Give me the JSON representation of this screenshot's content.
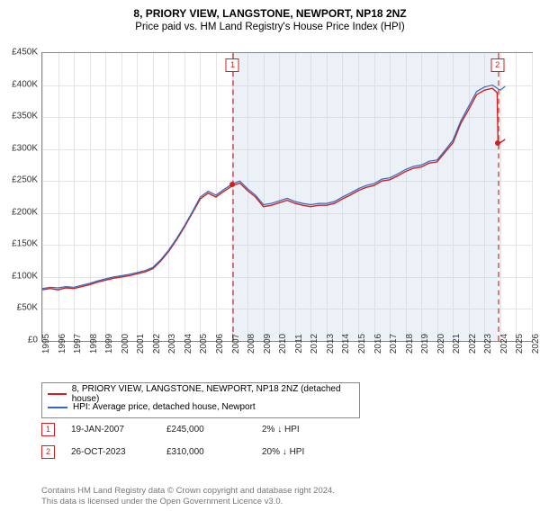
{
  "title": "8, PRIORY VIEW, LANGSTONE, NEWPORT, NP18 2NZ",
  "subtitle": "Price paid vs. HM Land Registry's House Price Index (HPI)",
  "chart": {
    "type": "line",
    "x_axis": {
      "min_year": 1995,
      "max_year": 2026,
      "tick_years": [
        1995,
        1996,
        1997,
        1998,
        1999,
        2000,
        2001,
        2002,
        2003,
        2004,
        2005,
        2006,
        2007,
        2008,
        2009,
        2010,
        2011,
        2012,
        2013,
        2014,
        2015,
        2016,
        2017,
        2018,
        2019,
        2020,
        2021,
        2022,
        2023,
        2024,
        2025,
        2026
      ]
    },
    "y_axis": {
      "min": 0,
      "max": 450000,
      "tick_step": 50000,
      "tick_labels": [
        "£0",
        "£50K",
        "£100K",
        "£150K",
        "£200K",
        "£250K",
        "£300K",
        "£350K",
        "£400K",
        "£450K"
      ]
    },
    "grid_color": "#e4e4e4",
    "background_color": "#ffffff",
    "shade_region": {
      "start_year": 2007.05,
      "end_year": 2023.82,
      "color": "#c8d8ec",
      "opacity": 0.35
    },
    "series": [
      {
        "name": "red",
        "label": "8, PRIORY VIEW, LANGSTONE, NEWPORT, NP18 2NZ (detached house)",
        "color": "#d02020",
        "line_width": 1.4,
        "points": [
          [
            1995.0,
            80000
          ],
          [
            1995.5,
            82000
          ],
          [
            1996.0,
            80000
          ],
          [
            1996.5,
            83000
          ],
          [
            1997.0,
            82000
          ],
          [
            1997.5,
            85000
          ],
          [
            1998.0,
            88000
          ],
          [
            1998.5,
            92000
          ],
          [
            1999.0,
            95000
          ],
          [
            1999.5,
            98000
          ],
          [
            2000.0,
            100000
          ],
          [
            2000.5,
            102000
          ],
          [
            2001.0,
            105000
          ],
          [
            2001.5,
            108000
          ],
          [
            2002.0,
            113000
          ],
          [
            2002.5,
            125000
          ],
          [
            2003.0,
            140000
          ],
          [
            2003.5,
            158000
          ],
          [
            2004.0,
            178000
          ],
          [
            2004.5,
            200000
          ],
          [
            2005.0,
            222000
          ],
          [
            2005.5,
            231000
          ],
          [
            2006.0,
            225000
          ],
          [
            2006.5,
            234000
          ],
          [
            2007.0,
            242000
          ],
          [
            2007.5,
            247000
          ],
          [
            2008.0,
            235000
          ],
          [
            2008.5,
            225000
          ],
          [
            2009.0,
            210000
          ],
          [
            2009.5,
            212000
          ],
          [
            2010.0,
            216000
          ],
          [
            2010.5,
            220000
          ],
          [
            2011.0,
            215000
          ],
          [
            2011.5,
            212000
          ],
          [
            2012.0,
            210000
          ],
          [
            2012.5,
            212000
          ],
          [
            2013.0,
            212000
          ],
          [
            2013.5,
            215000
          ],
          [
            2014.0,
            222000
          ],
          [
            2014.5,
            228000
          ],
          [
            2015.0,
            235000
          ],
          [
            2015.5,
            240000
          ],
          [
            2016.0,
            243000
          ],
          [
            2016.5,
            250000
          ],
          [
            2017.0,
            252000
          ],
          [
            2017.5,
            258000
          ],
          [
            2018.0,
            265000
          ],
          [
            2018.5,
            270000
          ],
          [
            2019.0,
            272000
          ],
          [
            2019.5,
            278000
          ],
          [
            2020.0,
            280000
          ],
          [
            2020.5,
            295000
          ],
          [
            2021.0,
            310000
          ],
          [
            2021.5,
            340000
          ],
          [
            2022.0,
            362000
          ],
          [
            2022.5,
            385000
          ],
          [
            2023.0,
            392000
          ],
          [
            2023.5,
            395000
          ],
          [
            2023.8,
            388000
          ],
          [
            2023.85,
            312000
          ],
          [
            2024.0,
            310000
          ],
          [
            2024.3,
            315000
          ]
        ]
      },
      {
        "name": "blue",
        "label": "HPI: Average price, detached house, Newport",
        "color": "#3068c0",
        "line_width": 1.2,
        "points": [
          [
            1995.0,
            82000
          ],
          [
            1995.5,
            84000
          ],
          [
            1996.0,
            83000
          ],
          [
            1996.5,
            85000
          ],
          [
            1997.0,
            84000
          ],
          [
            1997.5,
            87000
          ],
          [
            1998.0,
            90000
          ],
          [
            1998.5,
            94000
          ],
          [
            1999.0,
            97000
          ],
          [
            1999.5,
            100000
          ],
          [
            2000.0,
            102000
          ],
          [
            2000.5,
            104000
          ],
          [
            2001.0,
            107000
          ],
          [
            2001.5,
            110000
          ],
          [
            2002.0,
            115000
          ],
          [
            2002.5,
            127000
          ],
          [
            2003.0,
            142000
          ],
          [
            2003.5,
            160000
          ],
          [
            2004.0,
            180000
          ],
          [
            2004.5,
            202000
          ],
          [
            2005.0,
            225000
          ],
          [
            2005.5,
            234000
          ],
          [
            2006.0,
            228000
          ],
          [
            2006.5,
            237000
          ],
          [
            2007.0,
            245000
          ],
          [
            2007.5,
            250000
          ],
          [
            2008.0,
            238000
          ],
          [
            2008.5,
            228000
          ],
          [
            2009.0,
            213000
          ],
          [
            2009.5,
            215000
          ],
          [
            2010.0,
            219000
          ],
          [
            2010.5,
            223000
          ],
          [
            2011.0,
            218000
          ],
          [
            2011.5,
            215000
          ],
          [
            2012.0,
            213000
          ],
          [
            2012.5,
            215000
          ],
          [
            2013.0,
            215000
          ],
          [
            2013.5,
            218000
          ],
          [
            2014.0,
            225000
          ],
          [
            2014.5,
            231000
          ],
          [
            2015.0,
            238000
          ],
          [
            2015.5,
            243000
          ],
          [
            2016.0,
            246000
          ],
          [
            2016.5,
            253000
          ],
          [
            2017.0,
            255000
          ],
          [
            2017.5,
            261000
          ],
          [
            2018.0,
            268000
          ],
          [
            2018.5,
            273000
          ],
          [
            2019.0,
            275000
          ],
          [
            2019.5,
            281000
          ],
          [
            2020.0,
            283000
          ],
          [
            2020.5,
            298000
          ],
          [
            2021.0,
            314000
          ],
          [
            2021.5,
            344000
          ],
          [
            2022.0,
            367000
          ],
          [
            2022.5,
            390000
          ],
          [
            2023.0,
            397000
          ],
          [
            2023.5,
            400000
          ],
          [
            2024.0,
            392000
          ],
          [
            2024.3,
            398000
          ]
        ]
      }
    ],
    "markers": [
      {
        "id": "1",
        "year": 2007.05,
        "price": 245000,
        "label_top": 6
      },
      {
        "id": "2",
        "year": 2023.82,
        "price": 310000,
        "label_top": 6
      }
    ]
  },
  "legend": {
    "items": [
      {
        "color": "#d02020",
        "label": "8, PRIORY VIEW, LANGSTONE, NEWPORT, NP18 2NZ (detached house)"
      },
      {
        "color": "#3068c0",
        "label": "HPI: Average price, detached house, Newport"
      }
    ]
  },
  "annotations": [
    {
      "id": "1",
      "date": "19-JAN-2007",
      "price": "£245,000",
      "delta": "2% ↓ HPI"
    },
    {
      "id": "2",
      "date": "26-OCT-2023",
      "price": "£310,000",
      "delta": "20% ↓ HPI"
    }
  ],
  "footer": {
    "line1": "Contains HM Land Registry data © Crown copyright and database right 2024.",
    "line2": "This data is licensed under the Open Government Licence v3.0."
  }
}
